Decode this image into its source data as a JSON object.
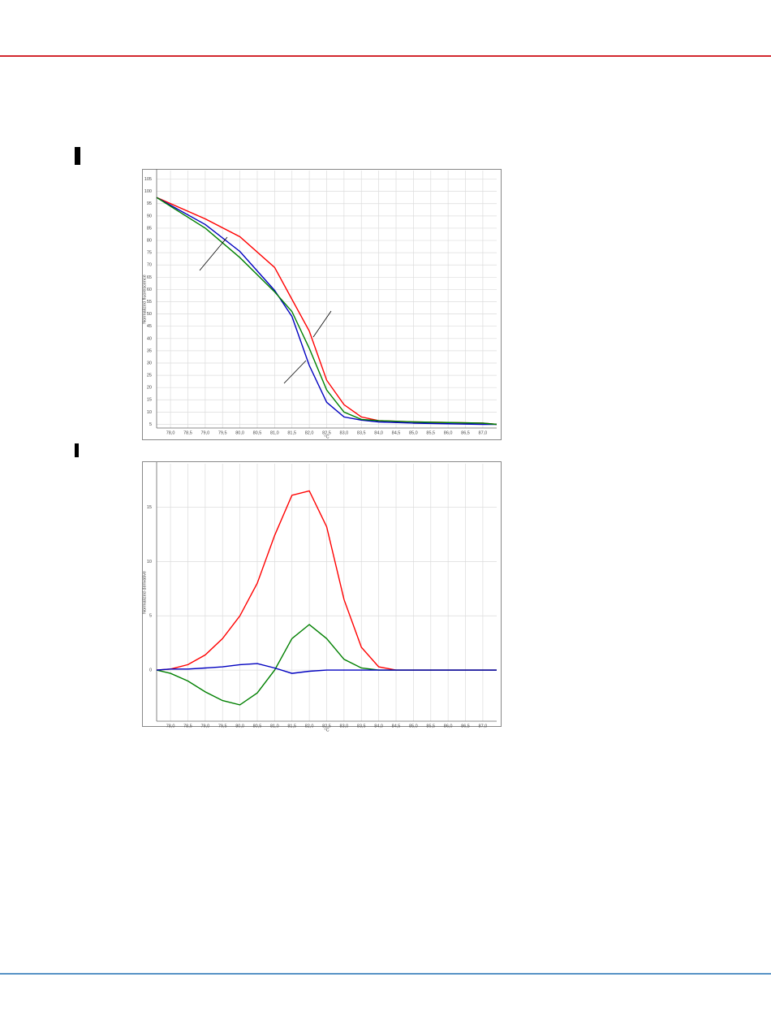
{
  "chart_data": [
    {
      "type": "line",
      "y_label": "Normalized fluorescence",
      "x_label": "°C",
      "x": [
        77.6,
        79.0,
        80.0,
        81.0,
        81.5,
        82.0,
        82.5,
        83.0,
        83.5,
        84.0,
        85.0,
        87.0,
        87.4
      ],
      "series": [
        {
          "color": "#ff0000",
          "values": [
            97.5,
            88.8,
            81.5,
            69,
            56,
            43,
            23,
            13,
            8,
            6.5,
            6,
            5.5,
            5
          ]
        },
        {
          "color": "#0000c0",
          "values": [
            97.5,
            86.5,
            75.5,
            59.6,
            49,
            29,
            14,
            8,
            6.7,
            6,
            5.5,
            5,
            5
          ]
        },
        {
          "color": "#008000",
          "values": [
            97.5,
            85,
            73,
            59,
            51,
            36,
            19,
            10,
            7,
            6.5,
            6,
            5.5,
            5
          ]
        }
      ],
      "xlim": [
        77.6,
        87.4
      ],
      "xticks": [
        {
          "value": 78,
          "label": "78,0"
        },
        {
          "value": 78.5,
          "label": "78,5"
        },
        {
          "value": 79,
          "label": "79,0"
        },
        {
          "value": 79.5,
          "label": "79,5"
        },
        {
          "value": 80,
          "label": "80,0"
        },
        {
          "value": 80.5,
          "label": "80,5"
        },
        {
          "value": 81,
          "label": "81,0"
        },
        {
          "value": 81.5,
          "label": "81,5"
        },
        {
          "value": 82,
          "label": "82,0"
        },
        {
          "value": 82.5,
          "label": "82,5"
        },
        {
          "value": 83,
          "label": "83,0"
        },
        {
          "value": 83.5,
          "label": "83,5"
        },
        {
          "value": 84,
          "label": "84,0"
        },
        {
          "value": 84.5,
          "label": "84,5"
        },
        {
          "value": 85,
          "label": "85,0"
        },
        {
          "value": 85.5,
          "label": "85,5"
        },
        {
          "value": 86,
          "label": "86,0"
        },
        {
          "value": 86.5,
          "label": "86,5"
        },
        {
          "value": 87,
          "label": "87,0"
        }
      ],
      "ylim": [
        3.5,
        108.5
      ],
      "yticks": [
        5,
        10,
        15,
        20,
        25,
        30,
        35,
        40,
        45,
        50,
        55,
        60,
        65,
        70,
        75,
        80,
        85,
        90,
        95,
        100,
        105
      ],
      "grid": true
    },
    {
      "type": "line",
      "y_label": "Normalized derivative",
      "x_label": "°C",
      "x": [
        77.6,
        78.0,
        78.5,
        79.0,
        79.5,
        80.0,
        80.5,
        81.0,
        81.5,
        82.0,
        82.5,
        83.0,
        83.5,
        84.0,
        84.5,
        85.0,
        86.0,
        87.4
      ],
      "series": [
        {
          "color": "#ff0000",
          "values": [
            0,
            0.1,
            0.5,
            1.4,
            2.9,
            5,
            8,
            12.4,
            16.1,
            16.5,
            13.2,
            6.5,
            2.1,
            0.3,
            0,
            0,
            0,
            0
          ]
        },
        {
          "color": "#008000",
          "values": [
            0,
            -0.3,
            -1,
            -2,
            -2.8,
            -3.2,
            -2.1,
            0,
            2.9,
            4.2,
            2.9,
            1,
            0.2,
            0,
            0,
            0,
            0,
            0
          ]
        },
        {
          "color": "#0000c0",
          "values": [
            0,
            0.1,
            0.1,
            0.2,
            0.3,
            0.5,
            0.6,
            0.2,
            -0.3,
            -0.1,
            0,
            0,
            0,
            0,
            0,
            0,
            0,
            0
          ]
        }
      ],
      "xlim": [
        77.6,
        87.4
      ],
      "xticks": [
        {
          "value": 78,
          "label": "78,0"
        },
        {
          "value": 78.5,
          "label": "78,5"
        },
        {
          "value": 79,
          "label": "79,0"
        },
        {
          "value": 79.5,
          "label": "79,5"
        },
        {
          "value": 80,
          "label": "80,0"
        },
        {
          "value": 80.5,
          "label": "80,5"
        },
        {
          "value": 81,
          "label": "81,0"
        },
        {
          "value": 81.5,
          "label": "81,5"
        },
        {
          "value": 82,
          "label": "82,0"
        },
        {
          "value": 82.5,
          "label": "82,5"
        },
        {
          "value": 83,
          "label": "83,0"
        },
        {
          "value": 83.5,
          "label": "83,5"
        },
        {
          "value": 84,
          "label": "84,0"
        },
        {
          "value": 84.5,
          "label": "84,5"
        },
        {
          "value": 85,
          "label": "85,0"
        },
        {
          "value": 85.5,
          "label": "85,5"
        },
        {
          "value": 86,
          "label": "86,0"
        },
        {
          "value": 86.5,
          "label": "86,5"
        },
        {
          "value": 87,
          "label": "87,0"
        }
      ],
      "ylim": [
        -4.7,
        19
      ],
      "yticks": [
        0,
        5,
        10,
        15
      ],
      "grid": true
    }
  ]
}
